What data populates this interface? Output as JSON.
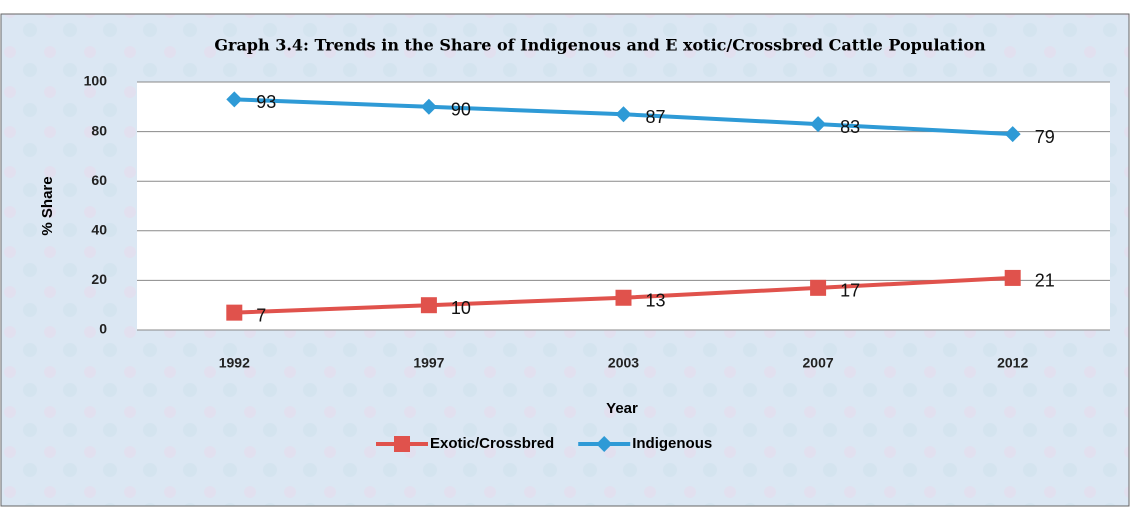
{
  "chart_data": {
    "type": "line",
    "title": "Graph  3.4: Trends in the Share of Indigenous and E xotic/Crossbred Cattle Population",
    "categories": [
      "1992",
      "1997",
      "2003",
      "2007",
      "2012"
    ],
    "series": [
      {
        "name": "Exotic/Crossbred",
        "color": "#e0524c",
        "marker": "square",
        "values": [
          7,
          10,
          13,
          17,
          21
        ]
      },
      {
        "name": "Indigenous",
        "color": "#2e9ad6",
        "marker": "diamond",
        "values": [
          93,
          90,
          87,
          83,
          79
        ]
      }
    ],
    "ylim": [
      0,
      100
    ],
    "yticks": [
      0,
      20,
      40,
      60,
      80,
      100
    ],
    "grid": true,
    "xlabel": "Year",
    "ylabel": "% Share",
    "legend": "bottom"
  }
}
